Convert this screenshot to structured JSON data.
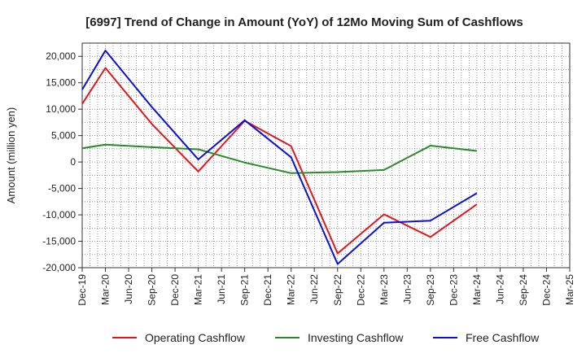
{
  "chart_data": {
    "type": "line",
    "title": "[6997]  Trend of Change in Amount (YoY) of 12Mo Moving Sum of Cashflows",
    "ylabel": "Amount (million yen)",
    "xlabel": "",
    "ylim": [
      -20000,
      22500
    ],
    "yticks": [
      20000,
      15000,
      10000,
      5000,
      0,
      -5000,
      -10000,
      -15000,
      -20000
    ],
    "ytick_labels": [
      "20,000",
      "15,000",
      "10,000",
      "5,000",
      "0",
      "-5,000",
      "-10,000",
      "-15,000",
      "-20,000"
    ],
    "categories": [
      "Dec-19",
      "Mar-20",
      "Jun-20",
      "Sep-20",
      "Dec-20",
      "Mar-21",
      "Jun-21",
      "Sep-21",
      "Dec-21",
      "Mar-22",
      "Jun-22",
      "Sep-22",
      "Dec-22",
      "Mar-23",
      "Jun-23",
      "Sep-23",
      "Dec-23",
      "Mar-24",
      "Jun-24",
      "Sep-24",
      "Dec-24",
      "Mar-25"
    ],
    "grid": true,
    "legend_position": "bottom",
    "series": [
      {
        "name": "Operating Cashflow",
        "color": "#e8141b",
        "points": [
          {
            "x": "Dec-19",
            "y": 11000
          },
          {
            "x": "Mar-20",
            "y": 17800
          },
          {
            "x": "Sep-20",
            "y": 7200
          },
          {
            "x": "Mar-21",
            "y": -1800
          },
          {
            "x": "Sep-21",
            "y": 7800
          },
          {
            "x": "Mar-22",
            "y": 3000
          },
          {
            "x": "Sep-22",
            "y": -17300
          },
          {
            "x": "Mar-23",
            "y": -9900
          },
          {
            "x": "Sep-23",
            "y": -14200
          },
          {
            "x": "Mar-24",
            "y": -8000
          }
        ]
      },
      {
        "name": "Investing Cashflow",
        "color": "#2a8a2a",
        "points": [
          {
            "x": "Dec-19",
            "y": 2600
          },
          {
            "x": "Mar-20",
            "y": 3300
          },
          {
            "x": "Sep-20",
            "y": 2800
          },
          {
            "x": "Mar-21",
            "y": 2400
          },
          {
            "x": "Sep-21",
            "y": -100
          },
          {
            "x": "Mar-22",
            "y": -2100
          },
          {
            "x": "Sep-22",
            "y": -1900
          },
          {
            "x": "Mar-23",
            "y": -1500
          },
          {
            "x": "Sep-23",
            "y": 3100
          },
          {
            "x": "Mar-24",
            "y": 2100
          }
        ]
      },
      {
        "name": "Free Cashflow",
        "color": "#0b12d6",
        "points": [
          {
            "x": "Dec-19",
            "y": 13700
          },
          {
            "x": "Mar-20",
            "y": 21100
          },
          {
            "x": "Sep-20",
            "y": 10400
          },
          {
            "x": "Mar-21",
            "y": 500
          },
          {
            "x": "Sep-21",
            "y": 7900
          },
          {
            "x": "Mar-22",
            "y": 900
          },
          {
            "x": "Sep-22",
            "y": -19300
          },
          {
            "x": "Mar-23",
            "y": -11500
          },
          {
            "x": "Sep-23",
            "y": -11100
          },
          {
            "x": "Mar-24",
            "y": -5900
          }
        ]
      }
    ]
  }
}
